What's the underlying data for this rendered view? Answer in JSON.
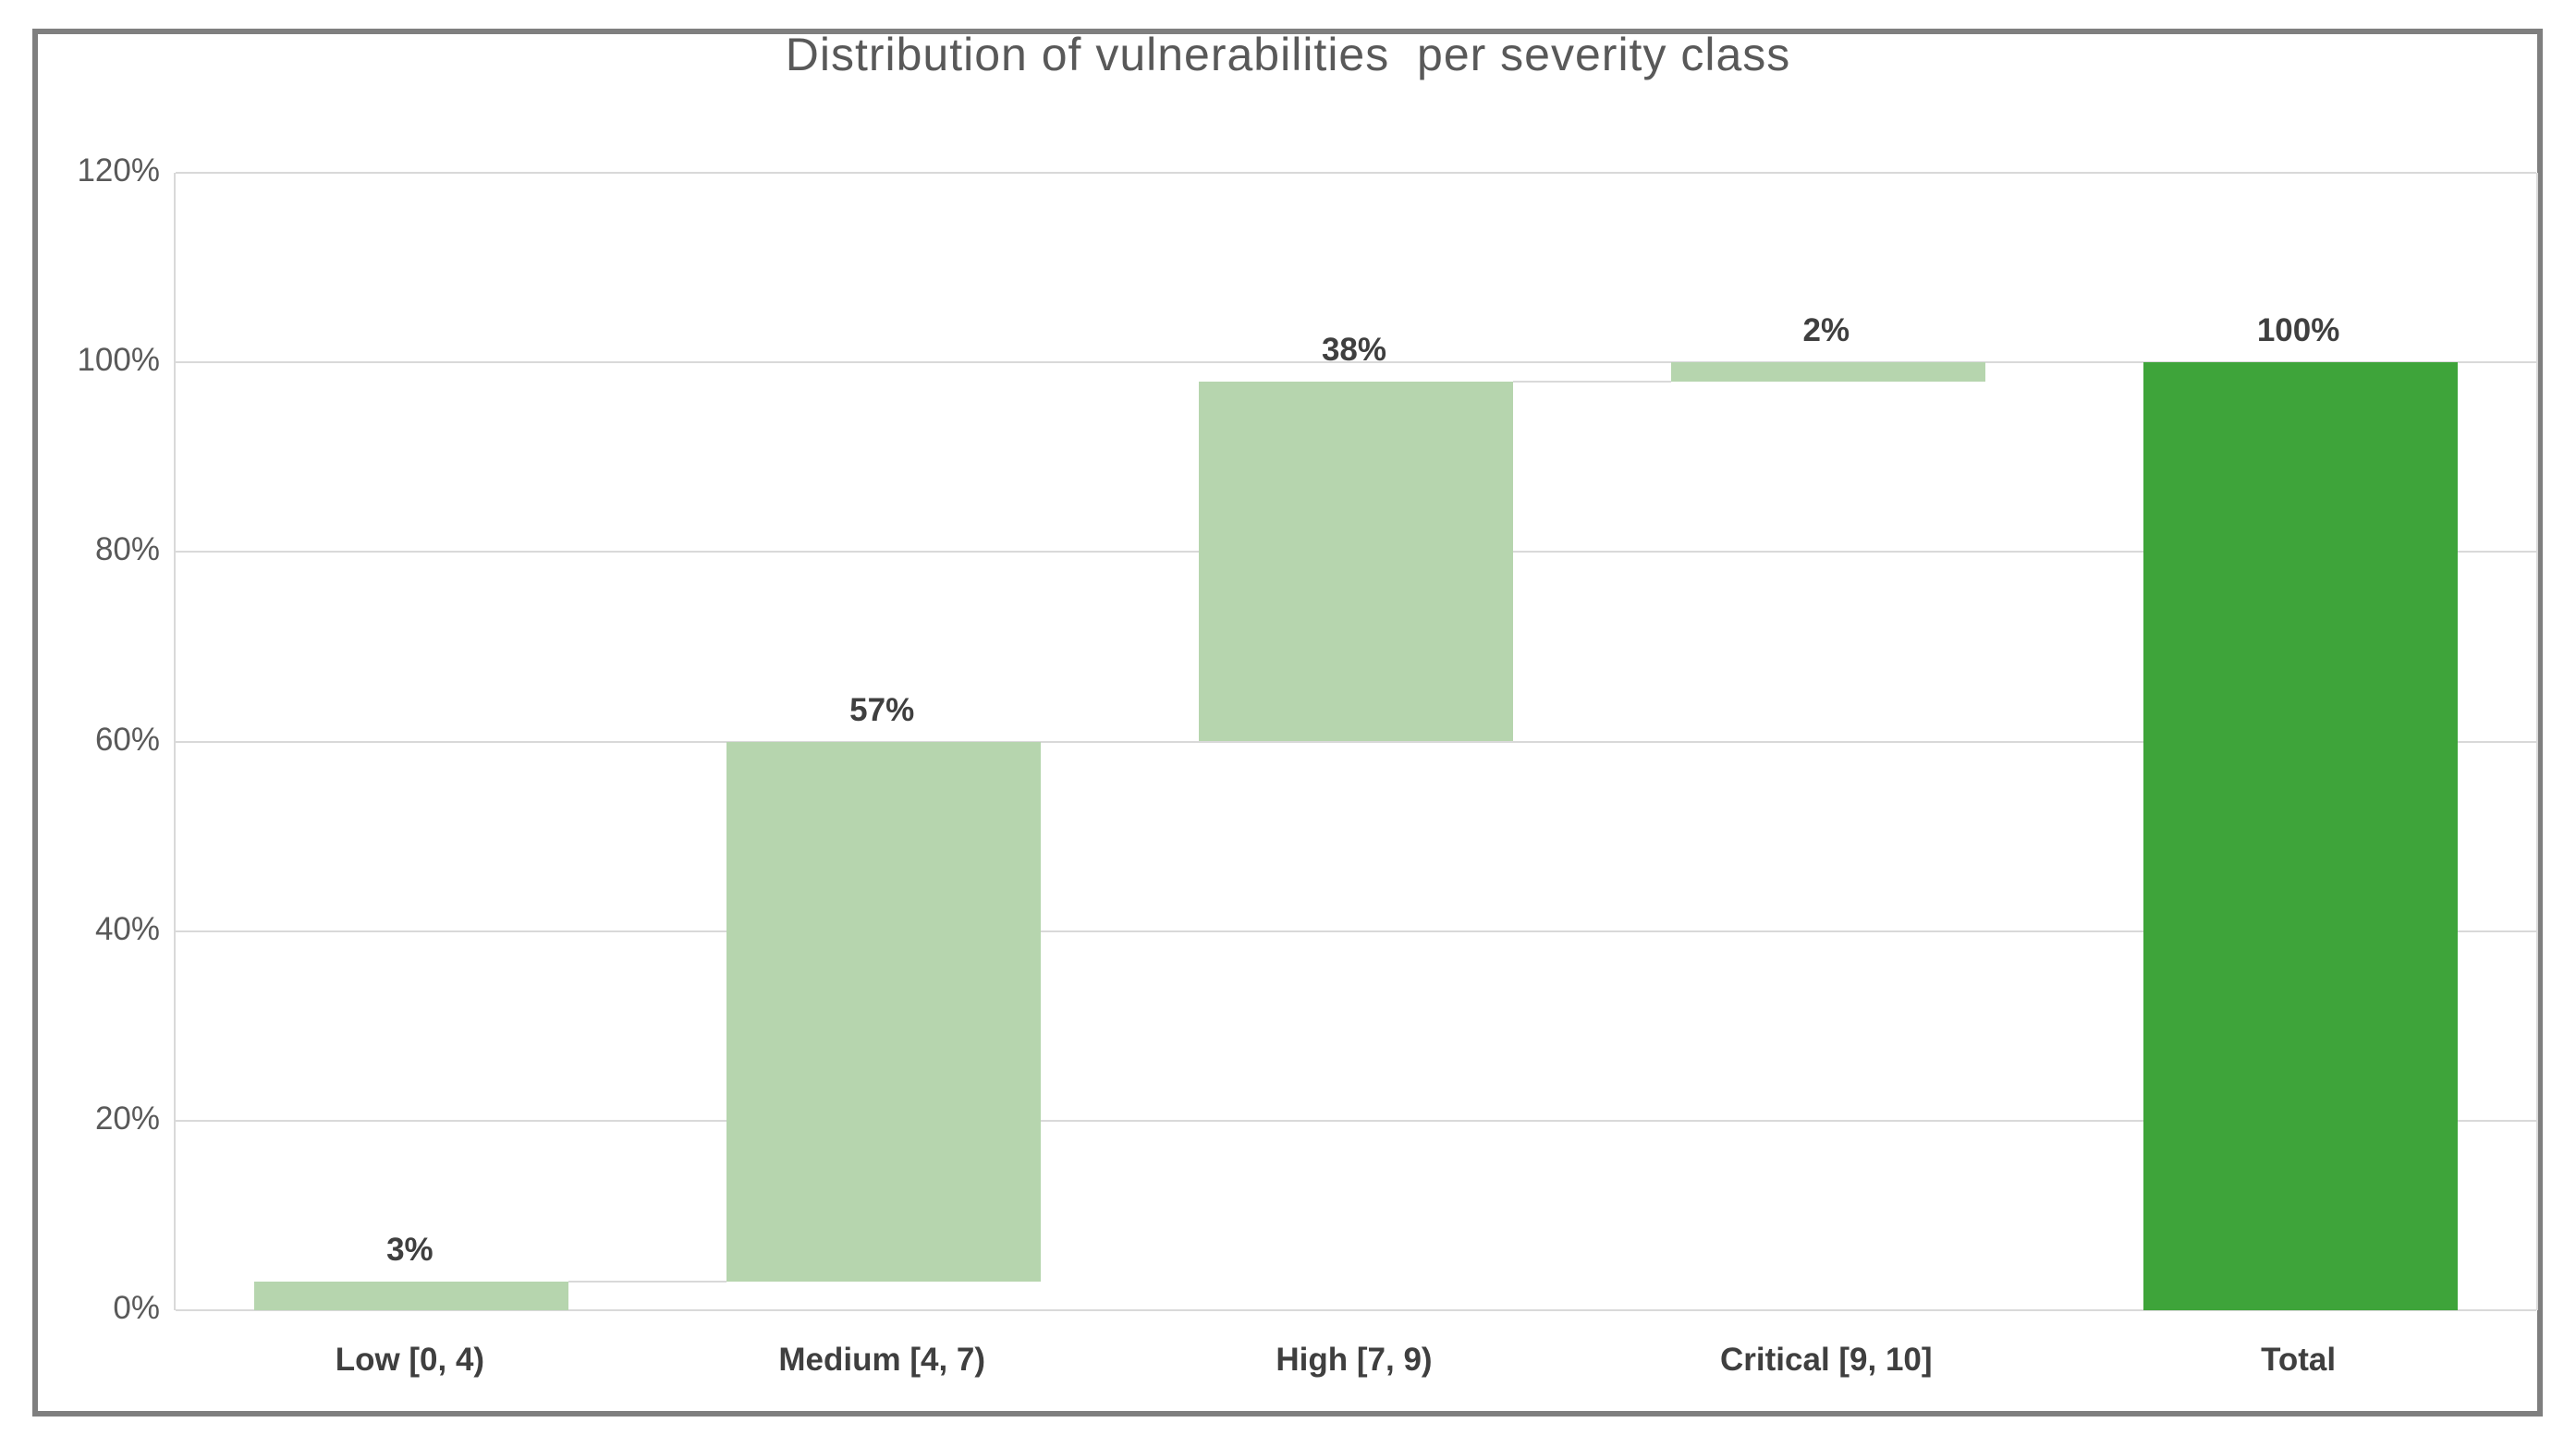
{
  "chart_data": {
    "type": "bar",
    "subtype": "waterfall",
    "title": "Distribution of vulnerabilities  per severity class",
    "categories": [
      "Low [0, 4)",
      "Medium [4, 7)",
      "High [7, 9)",
      "Critical [9, 10]",
      "Total"
    ],
    "bars": [
      {
        "category": "Low [0, 4)",
        "value": 3,
        "label": "3%",
        "kind": "increase"
      },
      {
        "category": "Medium [4, 7)",
        "value": 57,
        "label": "57%",
        "kind": "increase"
      },
      {
        "category": "High [7, 9)",
        "value": 38,
        "label": "38%",
        "kind": "increase"
      },
      {
        "category": "Critical [9, 10]",
        "value": 2,
        "label": "2%",
        "kind": "increase"
      },
      {
        "category": "Total",
        "value": 100,
        "label": "100%",
        "kind": "total"
      }
    ],
    "yaxis": {
      "min": 0,
      "max": 120,
      "step": 20,
      "tick_labels": [
        "0%",
        "20%",
        "40%",
        "60%",
        "80%",
        "100%",
        "120%"
      ]
    },
    "xlabel": "",
    "ylabel": "",
    "grid": true,
    "legend_position": "none",
    "connector_lines": true,
    "colors": {
      "increase_fill": "#b6d5ae",
      "total_fill": "#3ea43a",
      "gridline": "#d9d9d9",
      "connector": "#d9d9d9",
      "axis_text": "#595959",
      "data_label_text": "#3f3f3f",
      "title_text": "#595959",
      "frame_border": "#7f7f7f",
      "background": "#ffffff"
    }
  }
}
